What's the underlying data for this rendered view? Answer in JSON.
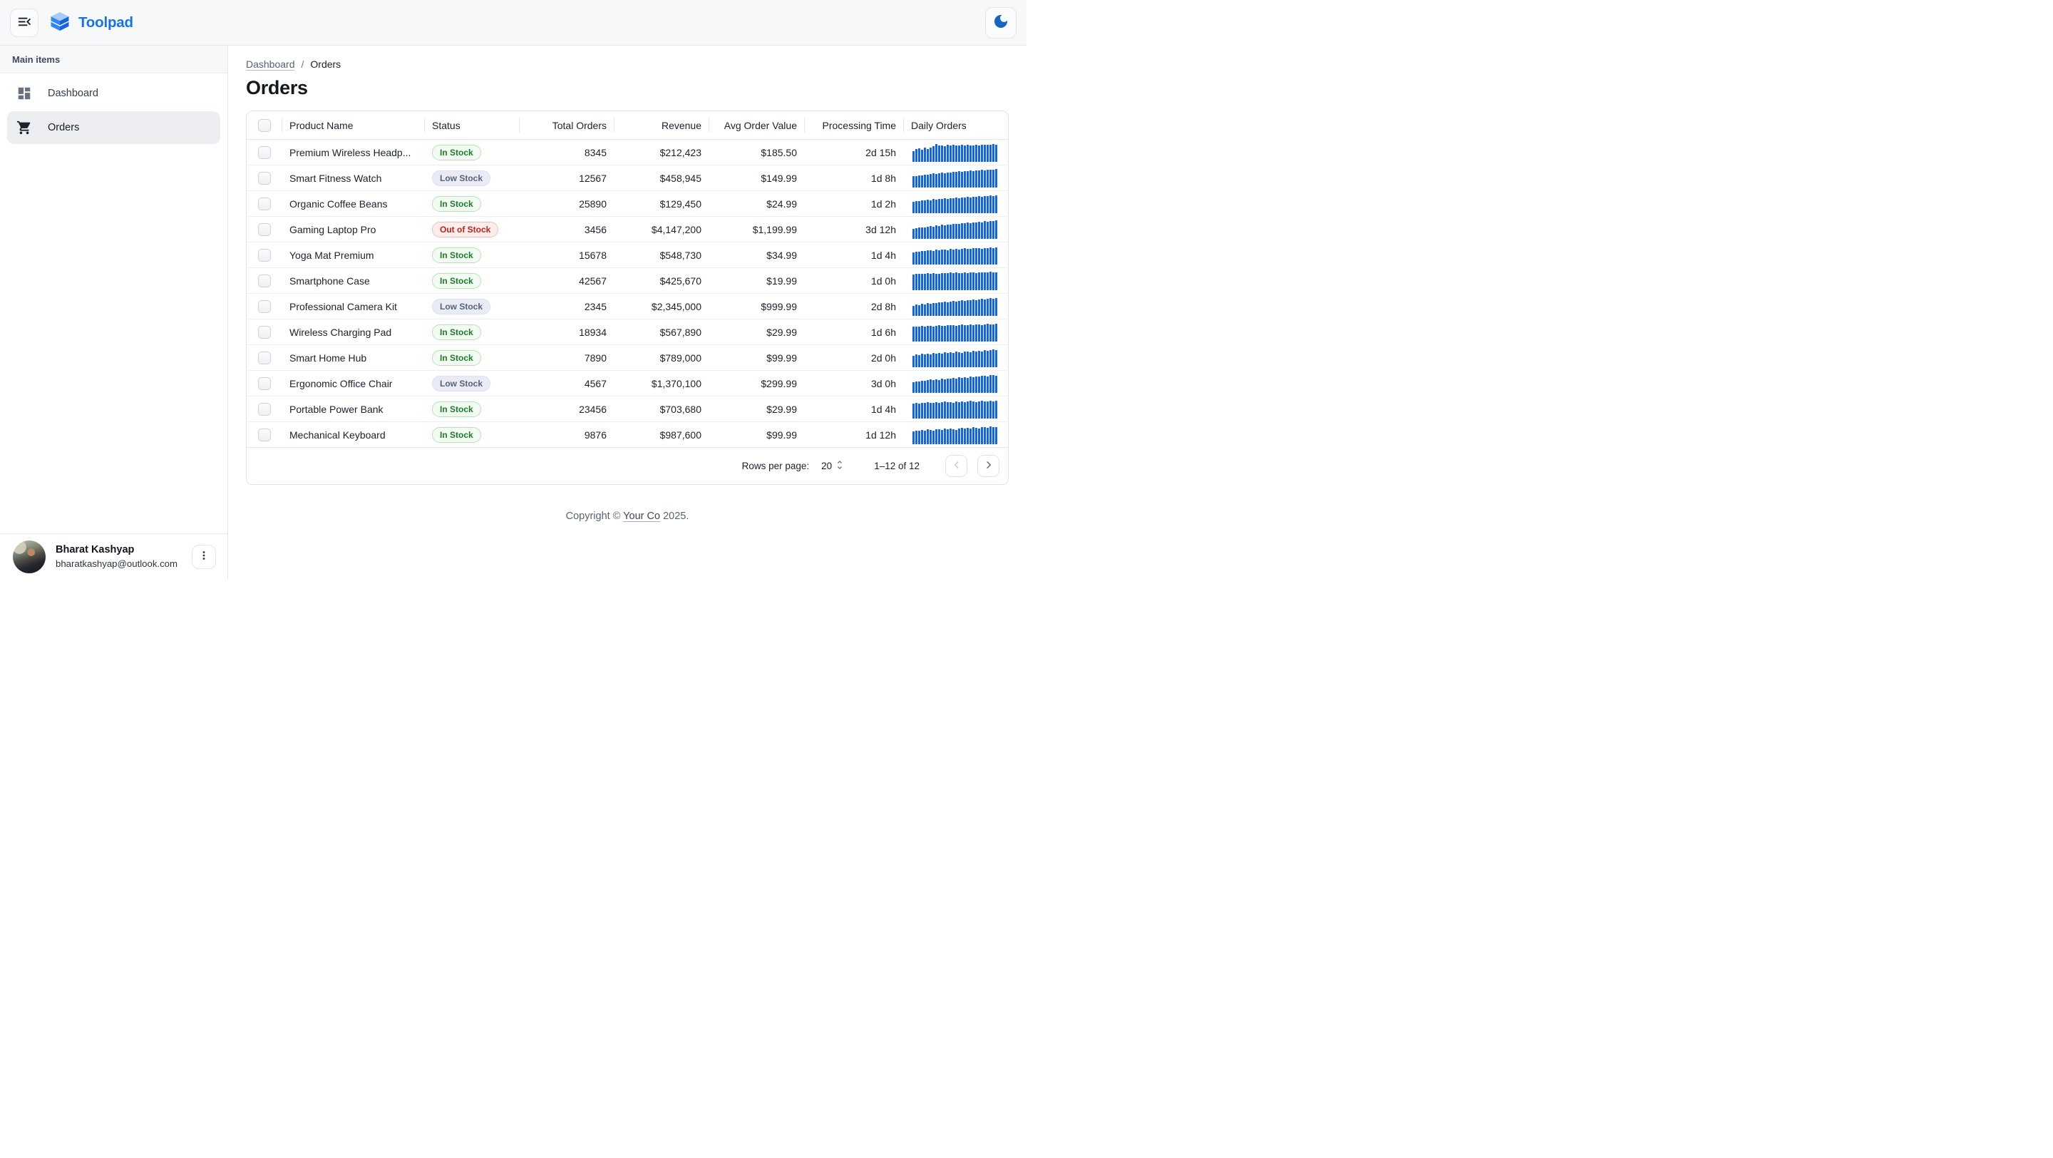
{
  "topbar": {
    "brand": "Toolpad"
  },
  "sidebar": {
    "section": "Main items",
    "items": [
      {
        "label": "Dashboard",
        "icon": "dashboard-icon",
        "active": false
      },
      {
        "label": "Orders",
        "icon": "shopping-cart-icon",
        "active": true
      }
    ]
  },
  "breadcrumb": {
    "items": [
      "Dashboard",
      "Orders"
    ],
    "separator": "/"
  },
  "page": {
    "title": "Orders"
  },
  "table": {
    "columns": [
      "Product Name",
      "Status",
      "Total Orders",
      "Revenue",
      "Avg Order Value",
      "Processing Time",
      "Daily Orders"
    ],
    "rows": [
      {
        "name": "Premium Wireless Headp...",
        "status": "In Stock",
        "status_type": "in",
        "total_orders": "8345",
        "revenue": "$212,423",
        "avg_order_value": "$185.50",
        "processing_time": "2d 15h",
        "spark": [
          0.58,
          0.7,
          0.74,
          0.66,
          0.78,
          0.68,
          0.76,
          0.84,
          0.95,
          0.88,
          0.9,
          0.86,
          0.92,
          0.88,
          0.94,
          0.9,
          0.87,
          0.92,
          0.89,
          0.94,
          0.9,
          0.88,
          0.93,
          0.9,
          0.92,
          0.94,
          0.91,
          0.93,
          0.97,
          0.94
        ]
      },
      {
        "name": "Smart Fitness Watch",
        "status": "Low Stock",
        "status_type": "low",
        "total_orders": "12567",
        "revenue": "$458,945",
        "avg_order_value": "$149.99",
        "processing_time": "1d 8h",
        "spark": [
          0.6,
          0.63,
          0.66,
          0.64,
          0.7,
          0.68,
          0.73,
          0.75,
          0.72,
          0.77,
          0.8,
          0.78,
          0.82,
          0.8,
          0.85,
          0.83,
          0.87,
          0.85,
          0.9,
          0.88,
          0.92,
          0.9,
          0.94,
          0.92,
          0.95,
          0.93,
          0.97,
          0.95,
          0.98,
          1.0
        ]
      },
      {
        "name": "Organic Coffee Beans",
        "status": "In Stock",
        "status_type": "in",
        "total_orders": "25890",
        "revenue": "$129,450",
        "avg_order_value": "$24.99",
        "processing_time": "1d 2h",
        "spark": [
          0.62,
          0.66,
          0.64,
          0.7,
          0.68,
          0.72,
          0.7,
          0.75,
          0.73,
          0.78,
          0.76,
          0.8,
          0.78,
          0.82,
          0.8,
          0.84,
          0.82,
          0.86,
          0.84,
          0.88,
          0.86,
          0.9,
          0.88,
          0.92,
          0.9,
          0.94,
          0.92,
          0.96,
          0.94,
          0.98
        ]
      },
      {
        "name": "Gaming Laptop Pro",
        "status": "Out of Stock",
        "status_type": "out",
        "total_orders": "3456",
        "revenue": "$4,147,200",
        "avg_order_value": "$1,199.99",
        "processing_time": "3d 12h",
        "spark": [
          0.55,
          0.58,
          0.6,
          0.63,
          0.61,
          0.66,
          0.68,
          0.66,
          0.72,
          0.7,
          0.75,
          0.73,
          0.78,
          0.76,
          0.8,
          0.82,
          0.8,
          0.85,
          0.83,
          0.88,
          0.86,
          0.9,
          0.88,
          0.92,
          0.9,
          0.95,
          0.93,
          0.97,
          0.95,
          1.0
        ]
      },
      {
        "name": "Yoga Mat Premium",
        "status": "In Stock",
        "status_type": "in",
        "total_orders": "15678",
        "revenue": "$548,730",
        "avg_order_value": "$34.99",
        "processing_time": "1d 4h",
        "spark": [
          0.66,
          0.7,
          0.68,
          0.74,
          0.72,
          0.76,
          0.78,
          0.74,
          0.8,
          0.78,
          0.82,
          0.8,
          0.78,
          0.84,
          0.82,
          0.86,
          0.8,
          0.84,
          0.88,
          0.86,
          0.84,
          0.88,
          0.9,
          0.88,
          0.86,
          0.9,
          0.88,
          0.92,
          0.9,
          0.92
        ]
      },
      {
        "name": "Smartphone Case",
        "status": "In Stock",
        "status_type": "in",
        "total_orders": "42567",
        "revenue": "$425,670",
        "avg_order_value": "$19.99",
        "processing_time": "1d 0h",
        "spark": [
          0.86,
          0.88,
          0.87,
          0.9,
          0.88,
          0.91,
          0.89,
          0.92,
          0.9,
          0.88,
          0.92,
          0.94,
          0.92,
          0.95,
          0.93,
          0.95,
          0.92,
          0.94,
          0.96,
          0.93,
          0.95,
          0.97,
          0.94,
          0.96,
          0.98,
          0.95,
          0.97,
          0.99,
          0.96,
          0.98
        ]
      },
      {
        "name": "Professional Camera Kit",
        "status": "Low Stock",
        "status_type": "low",
        "total_orders": "2345",
        "revenue": "$2,345,000",
        "avg_order_value": "$999.99",
        "processing_time": "2d 8h",
        "spark": [
          0.55,
          0.6,
          0.58,
          0.64,
          0.62,
          0.68,
          0.66,
          0.7,
          0.68,
          0.74,
          0.72,
          0.76,
          0.74,
          0.78,
          0.8,
          0.78,
          0.82,
          0.84,
          0.82,
          0.86,
          0.84,
          0.88,
          0.86,
          0.9,
          0.92,
          0.9,
          0.94,
          0.96,
          0.94,
          0.98
        ]
      },
      {
        "name": "Wireless Charging Pad",
        "status": "In Stock",
        "status_type": "in",
        "total_orders": "18934",
        "revenue": "$567,890",
        "avg_order_value": "$29.99",
        "processing_time": "1d 6h",
        "spark": [
          0.8,
          0.82,
          0.8,
          0.84,
          0.82,
          0.86,
          0.84,
          0.82,
          0.86,
          0.88,
          0.86,
          0.84,
          0.88,
          0.9,
          0.88,
          0.86,
          0.9,
          0.92,
          0.9,
          0.88,
          0.92,
          0.9,
          0.94,
          0.92,
          0.9,
          0.94,
          0.96,
          0.94,
          0.92,
          0.96
        ]
      },
      {
        "name": "Smart Home Hub",
        "status": "In Stock",
        "status_type": "in",
        "total_orders": "7890",
        "revenue": "$789,000",
        "avg_order_value": "$99.99",
        "processing_time": "2d 0h",
        "spark": [
          0.62,
          0.68,
          0.64,
          0.72,
          0.68,
          0.74,
          0.7,
          0.76,
          0.72,
          0.78,
          0.74,
          0.8,
          0.76,
          0.82,
          0.78,
          0.84,
          0.8,
          0.78,
          0.84,
          0.86,
          0.82,
          0.88,
          0.84,
          0.9,
          0.86,
          0.92,
          0.88,
          0.94,
          0.96,
          0.92
        ]
      },
      {
        "name": "Ergonomic Office Chair",
        "status": "Low Stock",
        "status_type": "low",
        "total_orders": "4567",
        "revenue": "$1,370,100",
        "avg_order_value": "$299.99",
        "processing_time": "3d 0h",
        "spark": [
          0.58,
          0.62,
          0.6,
          0.66,
          0.64,
          0.68,
          0.72,
          0.68,
          0.74,
          0.7,
          0.76,
          0.74,
          0.78,
          0.76,
          0.82,
          0.78,
          0.84,
          0.8,
          0.86,
          0.82,
          0.88,
          0.84,
          0.9,
          0.88,
          0.92,
          0.94,
          0.9,
          0.96,
          0.98,
          0.94
        ]
      },
      {
        "name": "Portable Power Bank",
        "status": "In Stock",
        "status_type": "in",
        "total_orders": "23456",
        "revenue": "$703,680",
        "avg_order_value": "$29.99",
        "processing_time": "1d 4h",
        "spark": [
          0.82,
          0.84,
          0.82,
          0.86,
          0.84,
          0.88,
          0.84,
          0.86,
          0.9,
          0.86,
          0.88,
          0.92,
          0.88,
          0.9,
          0.86,
          0.92,
          0.9,
          0.94,
          0.9,
          0.92,
          0.96,
          0.92,
          0.9,
          0.94,
          0.96,
          0.92,
          0.94,
          0.98,
          0.94,
          0.96
        ]
      },
      {
        "name": "Mechanical Keyboard",
        "status": "In Stock",
        "status_type": "in",
        "total_orders": "9876",
        "revenue": "$987,600",
        "avg_order_value": "$99.99",
        "processing_time": "1d 12h",
        "spark": [
          0.7,
          0.74,
          0.72,
          0.78,
          0.74,
          0.8,
          0.76,
          0.74,
          0.8,
          0.82,
          0.78,
          0.84,
          0.8,
          0.86,
          0.82,
          0.78,
          0.84,
          0.88,
          0.84,
          0.9,
          0.86,
          0.92,
          0.88,
          0.86,
          0.92,
          0.94,
          0.9,
          0.96,
          0.92,
          0.94
        ]
      }
    ]
  },
  "pagination": {
    "rows_per_page_label": "Rows per page:",
    "rows_per_page": "20",
    "range": "1–12 of 12"
  },
  "footer": {
    "prefix": "Copyright © ",
    "link": "Your Co",
    "suffix": " 2025."
  },
  "user": {
    "name": "Bharat Kashyap",
    "email": "bharatkashyap@outlook.com"
  },
  "colors": {
    "brand_blue": "#1673e6",
    "moon_blue": "#1565c0",
    "spark_blue": "#1667cd",
    "status_in_stock": "#1e7b2a",
    "status_low_stock": "#57637a",
    "status_out_of_stock": "#b3261e"
  }
}
